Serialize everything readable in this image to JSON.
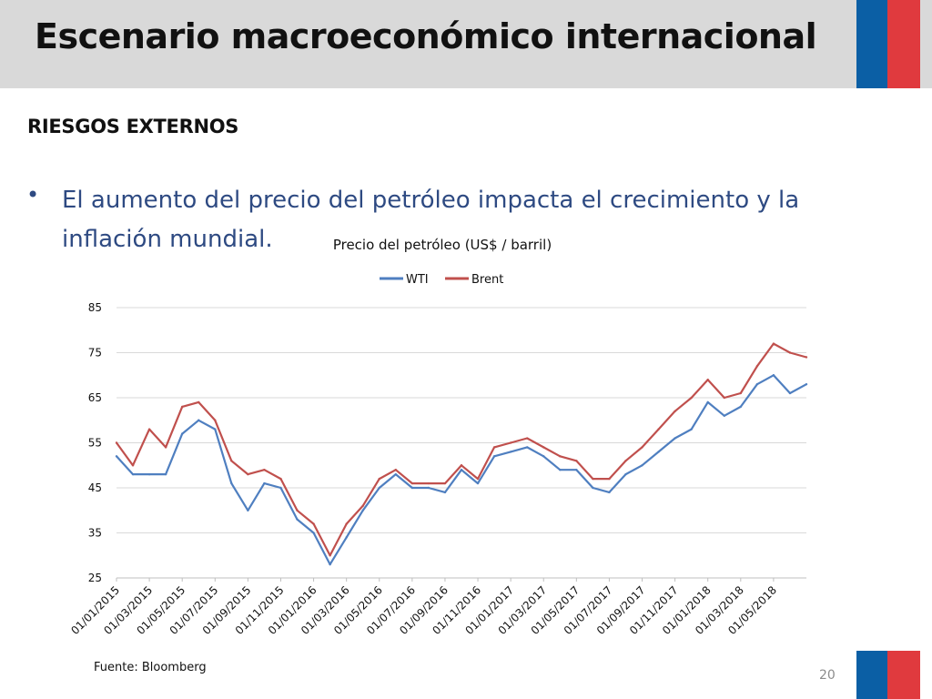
{
  "header": {
    "title": "Escenario macroeconómico internacional"
  },
  "section": {
    "heading": "RIESGOS EXTERNOS"
  },
  "bullet": {
    "text": "El aumento del precio del petróleo impacta el crecimiento y la inflación mundial."
  },
  "colors": {
    "header_bg": "#d9d9d9",
    "flag_blue": "#0b5fa5",
    "flag_red": "#e03a3e",
    "text_blue": "#2e4a82",
    "wti": "#4f7fc0",
    "brent": "#c0504d",
    "grid": "#d9d9d9"
  },
  "chart_data": {
    "type": "line",
    "title": "Precio del petróleo (US$ / barril)",
    "xlabel": "",
    "ylabel": "",
    "ylim": [
      25,
      85
    ],
    "yticks": [
      25,
      35,
      45,
      55,
      65,
      75,
      85
    ],
    "grid": true,
    "legend_position": "top-center",
    "x": [
      "01/01/2015",
      "01/02/2015",
      "01/03/2015",
      "01/04/2015",
      "01/05/2015",
      "01/06/2015",
      "01/07/2015",
      "01/08/2015",
      "01/09/2015",
      "01/10/2015",
      "01/11/2015",
      "01/12/2015",
      "01/01/2016",
      "01/02/2016",
      "01/03/2016",
      "01/04/2016",
      "01/05/2016",
      "01/06/2016",
      "01/07/2016",
      "01/08/2016",
      "01/09/2016",
      "01/10/2016",
      "01/11/2016",
      "01/12/2016",
      "01/01/2017",
      "01/02/2017",
      "01/03/2017",
      "01/04/2017",
      "01/05/2017",
      "01/06/2017",
      "01/07/2017",
      "01/08/2017",
      "01/09/2017",
      "01/10/2017",
      "01/11/2017",
      "01/12/2017",
      "01/01/2018",
      "01/02/2018",
      "01/03/2018",
      "01/04/2018",
      "01/05/2018",
      "01/06/2018",
      "01/07/2018"
    ],
    "xticks": [
      "01/01/2015",
      "01/03/2015",
      "01/05/2015",
      "01/07/2015",
      "01/09/2015",
      "01/11/2015",
      "01/01/2016",
      "01/03/2016",
      "01/05/2016",
      "01/07/2016",
      "01/09/2016",
      "01/11/2016",
      "01/01/2017",
      "01/03/2017",
      "01/05/2017",
      "01/07/2017",
      "01/09/2017",
      "01/11/2017",
      "01/01/2018",
      "01/03/2018",
      "01/05/2018"
    ],
    "series": [
      {
        "name": "WTI",
        "values": [
          52,
          48,
          48,
          48,
          57,
          60,
          58,
          46,
          40,
          46,
          45,
          38,
          35,
          28,
          34,
          40,
          45,
          48,
          45,
          45,
          44,
          49,
          46,
          52,
          53,
          54,
          52,
          49,
          49,
          45,
          44,
          48,
          50,
          53,
          56,
          58,
          64,
          61,
          63,
          68,
          70,
          66,
          68
        ]
      },
      {
        "name": "Brent",
        "values": [
          55,
          50,
          58,
          54,
          63,
          64,
          60,
          51,
          48,
          49,
          47,
          40,
          37,
          30,
          37,
          41,
          47,
          49,
          46,
          46,
          46,
          50,
          47,
          54,
          55,
          56,
          54,
          52,
          51,
          47,
          47,
          51,
          54,
          58,
          62,
          65,
          69,
          65,
          66,
          72,
          77,
          75,
          74
        ]
      }
    ]
  },
  "footer": {
    "source": "Fuente: Bloomberg",
    "page_number": "20"
  }
}
